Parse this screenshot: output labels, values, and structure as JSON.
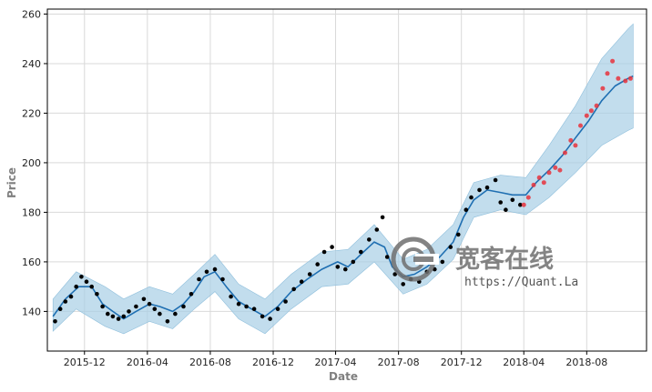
{
  "chart_data": {
    "type": "line",
    "title": "",
    "xlabel": "Date",
    "ylabel": "Price",
    "xlim": [
      "2015-09-20",
      "2018-11-25"
    ],
    "ylim": [
      124,
      262
    ],
    "x_ticks": [
      {
        "label": "2015-12",
        "date": "2015-12-01"
      },
      {
        "label": "2016-04",
        "date": "2016-04-01"
      },
      {
        "label": "2016-08",
        "date": "2016-08-01"
      },
      {
        "label": "2016-12",
        "date": "2016-12-01"
      },
      {
        "label": "2017-04",
        "date": "2017-04-01"
      },
      {
        "label": "2017-08",
        "date": "2017-08-01"
      },
      {
        "label": "2017-12",
        "date": "2017-12-01"
      },
      {
        "label": "2018-04",
        "date": "2018-04-01"
      },
      {
        "label": "2018-08",
        "date": "2018-08-01"
      }
    ],
    "y_ticks": [
      140,
      160,
      180,
      200,
      220,
      240,
      260
    ],
    "grid": true,
    "colors": {
      "forecast_line": "#1f6fb2",
      "uncertainty_band": "#a8cfe6",
      "historical_points": "#000000",
      "future_points": "#e8323c",
      "grid": "#d9d9d9"
    },
    "series": [
      {
        "role": "forecast-trend",
        "points": [
          [
            "2015-10-01",
            138
          ],
          [
            "2015-10-25",
            145
          ],
          [
            "2015-11-20",
            150
          ],
          [
            "2015-12-15",
            150
          ],
          [
            "2016-01-05",
            143
          ],
          [
            "2016-01-25",
            140
          ],
          [
            "2016-02-15",
            137
          ],
          [
            "2016-03-10",
            140
          ],
          [
            "2016-04-05",
            143
          ],
          [
            "2016-04-25",
            142
          ],
          [
            "2016-05-20",
            140
          ],
          [
            "2016-06-10",
            143
          ],
          [
            "2016-07-01",
            148
          ],
          [
            "2016-07-20",
            154
          ],
          [
            "2016-08-10",
            156
          ],
          [
            "2016-09-01",
            150
          ],
          [
            "2016-09-25",
            144
          ],
          [
            "2016-10-20",
            141
          ],
          [
            "2016-11-15",
            138
          ],
          [
            "2016-12-10",
            142
          ],
          [
            "2017-01-05",
            148
          ],
          [
            "2017-02-05",
            153
          ],
          [
            "2017-03-05",
            157
          ],
          [
            "2017-04-05",
            160
          ],
          [
            "2017-04-25",
            158
          ],
          [
            "2017-05-20",
            163
          ],
          [
            "2017-06-15",
            168
          ],
          [
            "2017-07-05",
            166
          ],
          [
            "2017-07-20",
            158
          ],
          [
            "2017-08-10",
            154
          ],
          [
            "2017-09-01",
            155
          ],
          [
            "2017-09-25",
            158
          ],
          [
            "2017-10-20",
            162
          ],
          [
            "2017-11-15",
            168
          ],
          [
            "2017-12-05",
            178
          ],
          [
            "2017-12-25",
            185
          ],
          [
            "2018-01-20",
            189
          ],
          [
            "2018-02-15",
            188
          ],
          [
            "2018-03-10",
            187
          ],
          [
            "2018-04-05",
            187
          ],
          [
            "2018-04-25",
            192
          ],
          [
            "2018-05-20",
            197
          ],
          [
            "2018-06-15",
            203
          ],
          [
            "2018-07-10",
            210
          ],
          [
            "2018-08-05",
            217
          ],
          [
            "2018-08-30",
            225
          ],
          [
            "2018-09-25",
            231
          ],
          [
            "2018-10-20",
            234
          ],
          [
            "2018-10-30",
            235
          ]
        ]
      },
      {
        "role": "uncertainty-interval",
        "points": [
          [
            "2015-10-01",
            132,
            145
          ],
          [
            "2015-11-15",
            141,
            156
          ],
          [
            "2016-01-10",
            134,
            150
          ],
          [
            "2016-02-15",
            131,
            145
          ],
          [
            "2016-04-05",
            136,
            150
          ],
          [
            "2016-05-20",
            133,
            147
          ],
          [
            "2016-07-01",
            141,
            155
          ],
          [
            "2016-08-10",
            148,
            163
          ],
          [
            "2016-09-25",
            137,
            151
          ],
          [
            "2016-11-15",
            131,
            145
          ],
          [
            "2017-01-05",
            141,
            155
          ],
          [
            "2017-03-05",
            150,
            164
          ],
          [
            "2017-04-25",
            151,
            165
          ],
          [
            "2017-06-15",
            160,
            175
          ],
          [
            "2017-08-10",
            147,
            161
          ],
          [
            "2017-09-25",
            151,
            165
          ],
          [
            "2017-11-15",
            161,
            175
          ],
          [
            "2017-12-25",
            178,
            192
          ],
          [
            "2018-02-15",
            181,
            195
          ],
          [
            "2018-04-05",
            179,
            194
          ],
          [
            "2018-05-20",
            186,
            207
          ],
          [
            "2018-07-10",
            196,
            223
          ],
          [
            "2018-08-30",
            207,
            242
          ],
          [
            "2018-10-20",
            213,
            254
          ],
          [
            "2018-10-30",
            214,
            256
          ]
        ]
      },
      {
        "role": "historical",
        "points": [
          [
            "2015-10-05",
            136
          ],
          [
            "2015-10-15",
            141
          ],
          [
            "2015-10-25",
            144
          ],
          [
            "2015-11-05",
            146
          ],
          [
            "2015-11-15",
            150
          ],
          [
            "2015-11-25",
            154
          ],
          [
            "2015-12-05",
            152
          ],
          [
            "2015-12-15",
            150
          ],
          [
            "2015-12-25",
            147
          ],
          [
            "2016-01-05",
            142
          ],
          [
            "2016-01-15",
            139
          ],
          [
            "2016-01-25",
            138
          ],
          [
            "2016-02-05",
            137
          ],
          [
            "2016-02-15",
            138
          ],
          [
            "2016-02-25",
            140
          ],
          [
            "2016-03-10",
            142
          ],
          [
            "2016-03-25",
            145
          ],
          [
            "2016-04-05",
            143
          ],
          [
            "2016-04-15",
            141
          ],
          [
            "2016-04-25",
            139
          ],
          [
            "2016-05-10",
            136
          ],
          [
            "2016-05-25",
            139
          ],
          [
            "2016-06-10",
            142
          ],
          [
            "2016-06-25",
            147
          ],
          [
            "2016-07-10",
            153
          ],
          [
            "2016-07-25",
            156
          ],
          [
            "2016-08-10",
            157
          ],
          [
            "2016-08-25",
            153
          ],
          [
            "2016-09-10",
            146
          ],
          [
            "2016-09-25",
            143
          ],
          [
            "2016-10-10",
            142
          ],
          [
            "2016-10-25",
            141
          ],
          [
            "2016-11-10",
            138
          ],
          [
            "2016-11-25",
            137
          ],
          [
            "2016-12-10",
            141
          ],
          [
            "2016-12-25",
            144
          ],
          [
            "2017-01-10",
            149
          ],
          [
            "2017-01-25",
            152
          ],
          [
            "2017-02-10",
            155
          ],
          [
            "2017-02-25",
            159
          ],
          [
            "2017-03-10",
            164
          ],
          [
            "2017-03-25",
            166
          ],
          [
            "2017-04-05",
            158
          ],
          [
            "2017-04-20",
            157
          ],
          [
            "2017-05-05",
            160
          ],
          [
            "2017-05-20",
            164
          ],
          [
            "2017-06-05",
            169
          ],
          [
            "2017-06-20",
            173
          ],
          [
            "2017-07-01",
            178
          ],
          [
            "2017-07-10",
            162
          ],
          [
            "2017-07-25",
            155
          ],
          [
            "2017-08-10",
            151
          ],
          [
            "2017-08-25",
            153
          ],
          [
            "2017-09-10",
            152
          ],
          [
            "2017-09-25",
            156
          ],
          [
            "2017-10-10",
            157
          ],
          [
            "2017-10-25",
            160
          ],
          [
            "2017-11-10",
            166
          ],
          [
            "2017-11-25",
            171
          ],
          [
            "2017-12-10",
            181
          ],
          [
            "2017-12-20",
            186
          ],
          [
            "2018-01-05",
            189
          ],
          [
            "2018-01-20",
            190
          ],
          [
            "2018-02-05",
            193
          ],
          [
            "2018-02-15",
            184
          ],
          [
            "2018-02-25",
            181
          ],
          [
            "2018-03-10",
            185
          ],
          [
            "2018-03-25",
            183
          ]
        ]
      },
      {
        "role": "future-actual",
        "points": [
          [
            "2018-04-01",
            183
          ],
          [
            "2018-04-10",
            186
          ],
          [
            "2018-04-20",
            191
          ],
          [
            "2018-05-01",
            194
          ],
          [
            "2018-05-10",
            192
          ],
          [
            "2018-05-20",
            196
          ],
          [
            "2018-06-01",
            198
          ],
          [
            "2018-06-10",
            197
          ],
          [
            "2018-06-20",
            204
          ],
          [
            "2018-07-01",
            209
          ],
          [
            "2018-07-10",
            207
          ],
          [
            "2018-07-20",
            215
          ],
          [
            "2018-08-01",
            219
          ],
          [
            "2018-08-10",
            221
          ],
          [
            "2018-08-20",
            223
          ],
          [
            "2018-09-01",
            230
          ],
          [
            "2018-09-10",
            236
          ],
          [
            "2018-09-20",
            241
          ],
          [
            "2018-10-01",
            234
          ],
          [
            "2018-10-15",
            233
          ],
          [
            "2018-10-25",
            234
          ]
        ]
      }
    ]
  },
  "watermark": {
    "text": "宽客在线",
    "url": "https://Quant.La"
  }
}
